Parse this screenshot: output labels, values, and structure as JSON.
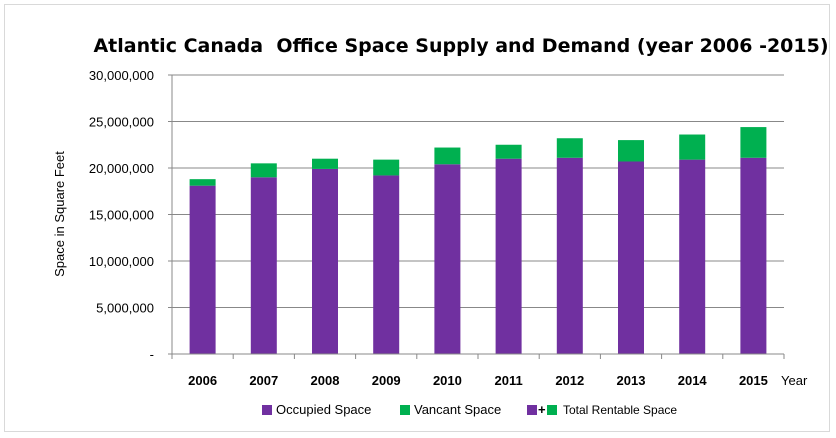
{
  "chart_data": {
    "type": "bar",
    "stacked": true,
    "title": "Atlantic Canada  Office Space Supply and Demand (year 2006 -2015)",
    "xlabel": "Year",
    "ylabel": "Space in Square Feet",
    "ylim": [
      0,
      30000000
    ],
    "yticks": [
      0,
      5000000,
      10000000,
      15000000,
      20000000,
      25000000,
      30000000
    ],
    "ytick_labels": [
      "-",
      "5,000,000",
      "10,000,000",
      "15,000,000",
      "20,000,000",
      "25,000,000",
      "30,000,000"
    ],
    "grid": true,
    "legend_position": "bottom",
    "categories": [
      "2006",
      "2007",
      "2008",
      "2009",
      "2010",
      "2011",
      "2012",
      "2013",
      "2014",
      "2015"
    ],
    "series": [
      {
        "name": "Occupied Space",
        "color": "#7030a0",
        "values": [
          18100000,
          19000000,
          19900000,
          19200000,
          20400000,
          21000000,
          21100000,
          20700000,
          20900000,
          21100000
        ]
      },
      {
        "name": "Vancant Space",
        "color": "#00b050",
        "values": [
          700000,
          1500000,
          1100000,
          1700000,
          1800000,
          1500000,
          2100000,
          2300000,
          2700000,
          3300000
        ]
      }
    ],
    "legend_extra": {
      "prefix": "+",
      "label": "Total Rentable Space"
    }
  }
}
